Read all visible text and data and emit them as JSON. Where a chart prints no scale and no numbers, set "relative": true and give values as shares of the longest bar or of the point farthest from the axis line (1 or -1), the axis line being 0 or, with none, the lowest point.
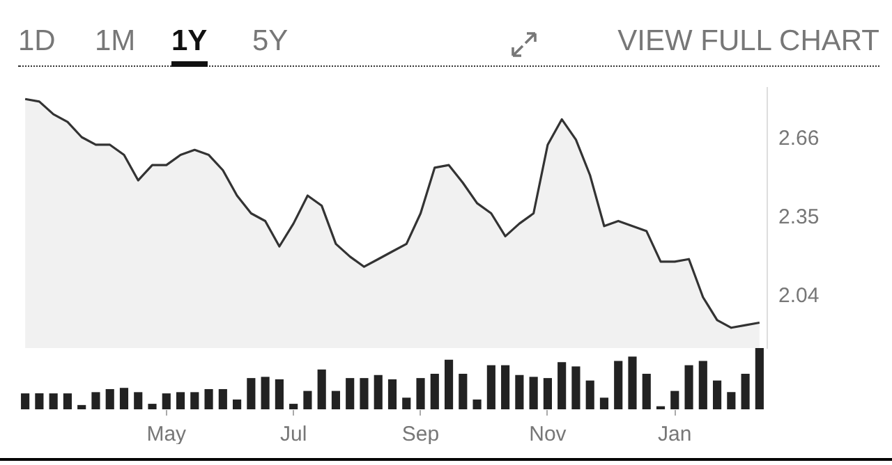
{
  "chart_data": [
    {
      "type": "area",
      "annotations": [
        "1D",
        "1M",
        "1Y",
        "5Y",
        "VIEW FULL CHART"
      ],
      "categories": [
        null,
        null,
        null,
        null,
        null,
        null,
        null,
        null,
        null,
        null,
        null,
        null,
        null,
        null,
        null,
        null,
        null,
        null,
        null,
        null,
        null,
        null,
        null,
        null,
        null,
        null,
        null,
        null,
        null,
        null,
        null,
        null,
        null,
        null,
        null,
        null,
        null,
        null,
        null,
        null,
        null,
        null,
        null,
        null,
        null,
        null,
        null,
        null,
        null,
        null,
        null,
        null,
        null
      ],
      "series": [
        {
          "color": "#333333",
          "values": [
            2.81,
            2.8,
            2.75,
            2.72,
            2.66,
            2.63,
            2.63,
            2.59,
            2.49,
            2.55,
            2.55,
            2.59,
            2.61,
            2.59,
            2.53,
            2.43,
            2.36,
            2.33,
            2.23,
            2.32,
            2.43,
            2.39,
            2.24,
            2.19,
            2.15,
            2.18,
            2.21,
            2.24,
            2.36,
            2.54,
            2.55,
            2.48,
            2.4,
            2.36,
            2.27,
            2.32,
            2.36,
            2.63,
            2.73,
            2.65,
            2.51,
            2.31,
            2.33,
            2.31,
            2.29,
            2.17,
            2.17,
            2.18,
            2.03,
            1.94,
            1.91,
            1.92,
            1.93
          ]
        }
      ],
      "ylim": [
        1.83,
        2.86
      ],
      "yticks": [
        2.04,
        2.35,
        2.66
      ]
    },
    {
      "type": "bar",
      "relative": true,
      "categories": [
        null,
        null,
        null,
        null,
        null,
        null,
        null,
        null,
        null,
        null,
        "May",
        null,
        null,
        null,
        null,
        null,
        null,
        null,
        null,
        "Jul",
        null,
        null,
        null,
        null,
        null,
        null,
        null,
        null,
        "Sep",
        null,
        null,
        null,
        null,
        null,
        null,
        null,
        null,
        "Nov",
        null,
        null,
        null,
        null,
        null,
        null,
        null,
        null,
        "Jan",
        null,
        null,
        null,
        null,
        null,
        null
      ],
      "series": [
        {
          "color": "#222222",
          "values": [
            0.26,
            0.26,
            0.26,
            0.26,
            0.07,
            0.28,
            0.33,
            0.35,
            0.28,
            0.09,
            0.26,
            0.28,
            0.28,
            0.33,
            0.33,
            0.16,
            0.51,
            0.53,
            0.49,
            0.09,
            0.3,
            0.65,
            0.3,
            0.51,
            0.51,
            0.56,
            0.49,
            0.19,
            0.51,
            0.58,
            0.81,
            0.58,
            0.16,
            0.72,
            0.72,
            0.56,
            0.53,
            0.51,
            0.77,
            0.7,
            0.47,
            0.19,
            0.79,
            0.86,
            0.58,
            0.05,
            0.3,
            0.72,
            0.79,
            0.47,
            0.28,
            0.58,
            1
          ]
        }
      ]
    }
  ]
}
